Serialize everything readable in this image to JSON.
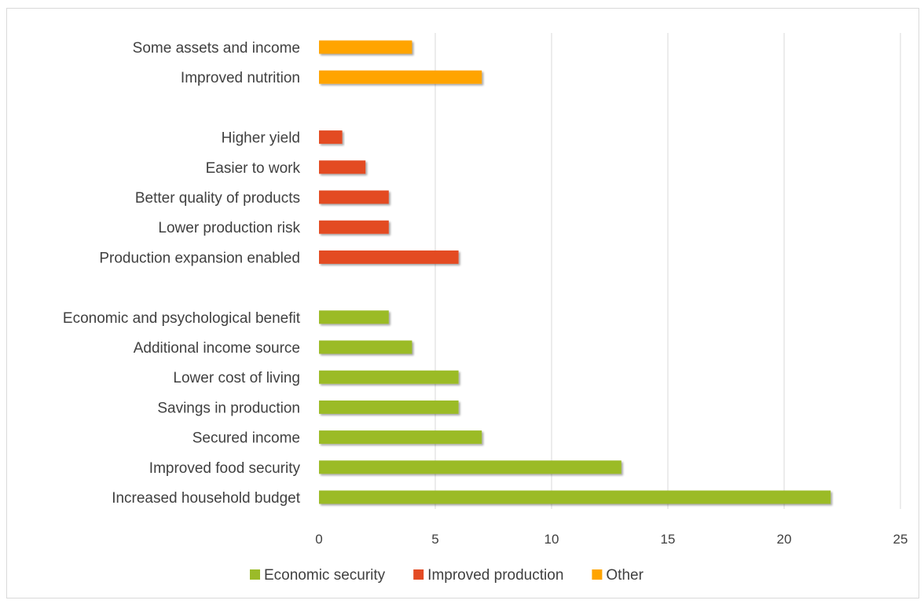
{
  "chart_data": {
    "type": "bar",
    "orientation": "horizontal",
    "xlim": [
      0,
      25
    ],
    "x_ticks": [
      "0",
      "5",
      "10",
      "15",
      "20",
      "25"
    ],
    "grid": "vertical",
    "legend_position": "bottom",
    "series": [
      {
        "name": "Economic security",
        "color": "#9bbb28"
      },
      {
        "name": "Improved production",
        "color": "#e34b24"
      },
      {
        "name": "Other",
        "color": "#ffa400"
      }
    ],
    "groups": [
      {
        "series": "Other",
        "bars": [
          {
            "label": "Some assets and income",
            "value": 4
          },
          {
            "label": "Improved nutrition",
            "value": 7
          }
        ]
      },
      {
        "series": "Improved production",
        "bars": [
          {
            "label": "Higher yield",
            "value": 1
          },
          {
            "label": "Easier to work",
            "value": 2
          },
          {
            "label": "Better quality of products",
            "value": 3
          },
          {
            "label": "Lower production risk",
            "value": 3
          },
          {
            "label": "Production expansion enabled",
            "value": 6
          }
        ]
      },
      {
        "series": "Economic security",
        "bars": [
          {
            "label": "Economic and psychological benefit",
            "value": 3
          },
          {
            "label": "Additional income source",
            "value": 4
          },
          {
            "label": "Lower cost of living",
            "value": 6
          },
          {
            "label": "Savings in production",
            "value": 6
          },
          {
            "label": "Secured income",
            "value": 7
          },
          {
            "label": "Improved food security",
            "value": 13
          },
          {
            "label": "Increased household budget",
            "value": 22
          }
        ]
      }
    ]
  }
}
